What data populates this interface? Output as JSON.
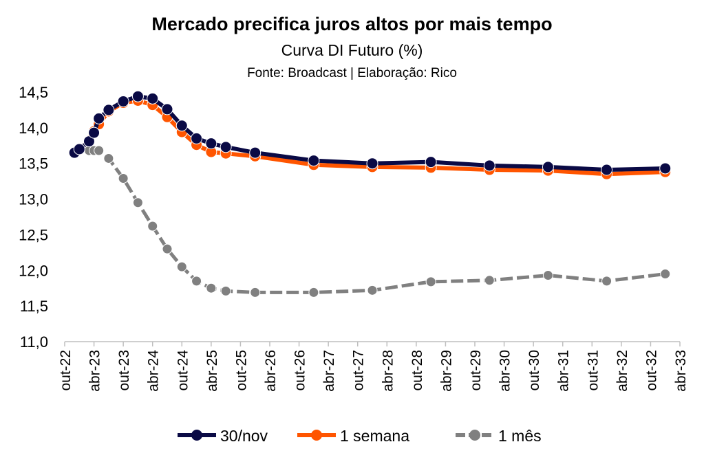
{
  "chart_data": {
    "type": "line",
    "title": "Mercado precifica juros altos por mais tempo",
    "subtitle": "Curva DI Futuro (%)",
    "source": "Fonte: Broadcast | Elaboração: Rico",
    "xlabel": "",
    "ylabel": "",
    "x_unit": "months since out-22",
    "x": [
      2,
      3,
      5,
      6,
      7,
      9,
      12,
      15,
      18,
      21,
      24,
      27,
      30,
      33,
      39,
      51,
      63,
      75,
      87,
      99,
      111,
      123
    ],
    "xlim": [
      0,
      126
    ],
    "ylim": [
      11.0,
      14.5
    ],
    "yticks": [
      "11,0",
      "11,5",
      "12,0",
      "12,5",
      "13,0",
      "13,5",
      "14,0",
      "14,5"
    ],
    "xticks": [
      "out-22",
      "abr-23",
      "out-23",
      "abr-24",
      "out-24",
      "abr-25",
      "out-25",
      "abr-26",
      "out-26",
      "abr-27",
      "out-27",
      "abr-28",
      "out-28",
      "abr-29",
      "out-29",
      "abr-30",
      "out-30",
      "abr-31",
      "out-31",
      "abr-32",
      "out-32",
      "abr-33"
    ],
    "grid": false,
    "legend_position": "bottom",
    "series": [
      {
        "name": "30/nov",
        "color": "#0a0a45",
        "dashed": false,
        "values": [
          13.65,
          13.7,
          13.81,
          13.93,
          14.13,
          14.25,
          14.37,
          14.44,
          14.41,
          14.26,
          14.03,
          13.85,
          13.78,
          13.73,
          13.65,
          13.54,
          13.5,
          13.52,
          13.47,
          13.45,
          13.41,
          13.43
        ]
      },
      {
        "name": "1 semana",
        "color": "#ff5500",
        "dashed": false,
        "values": [
          13.65,
          13.69,
          13.82,
          13.95,
          14.05,
          14.23,
          14.35,
          14.38,
          14.32,
          14.15,
          13.94,
          13.76,
          13.66,
          13.64,
          13.6,
          13.48,
          13.45,
          13.44,
          13.41,
          13.4,
          13.35,
          13.38
        ]
      },
      {
        "name": "1 mês",
        "color": "#808080",
        "dashed": true,
        "values": [
          13.65,
          13.68,
          13.68,
          13.68,
          13.68,
          13.57,
          13.29,
          12.95,
          12.62,
          12.3,
          12.05,
          11.85,
          11.75,
          11.71,
          11.69,
          11.69,
          11.72,
          11.84,
          11.86,
          11.93,
          11.85,
          11.95
        ]
      }
    ]
  }
}
